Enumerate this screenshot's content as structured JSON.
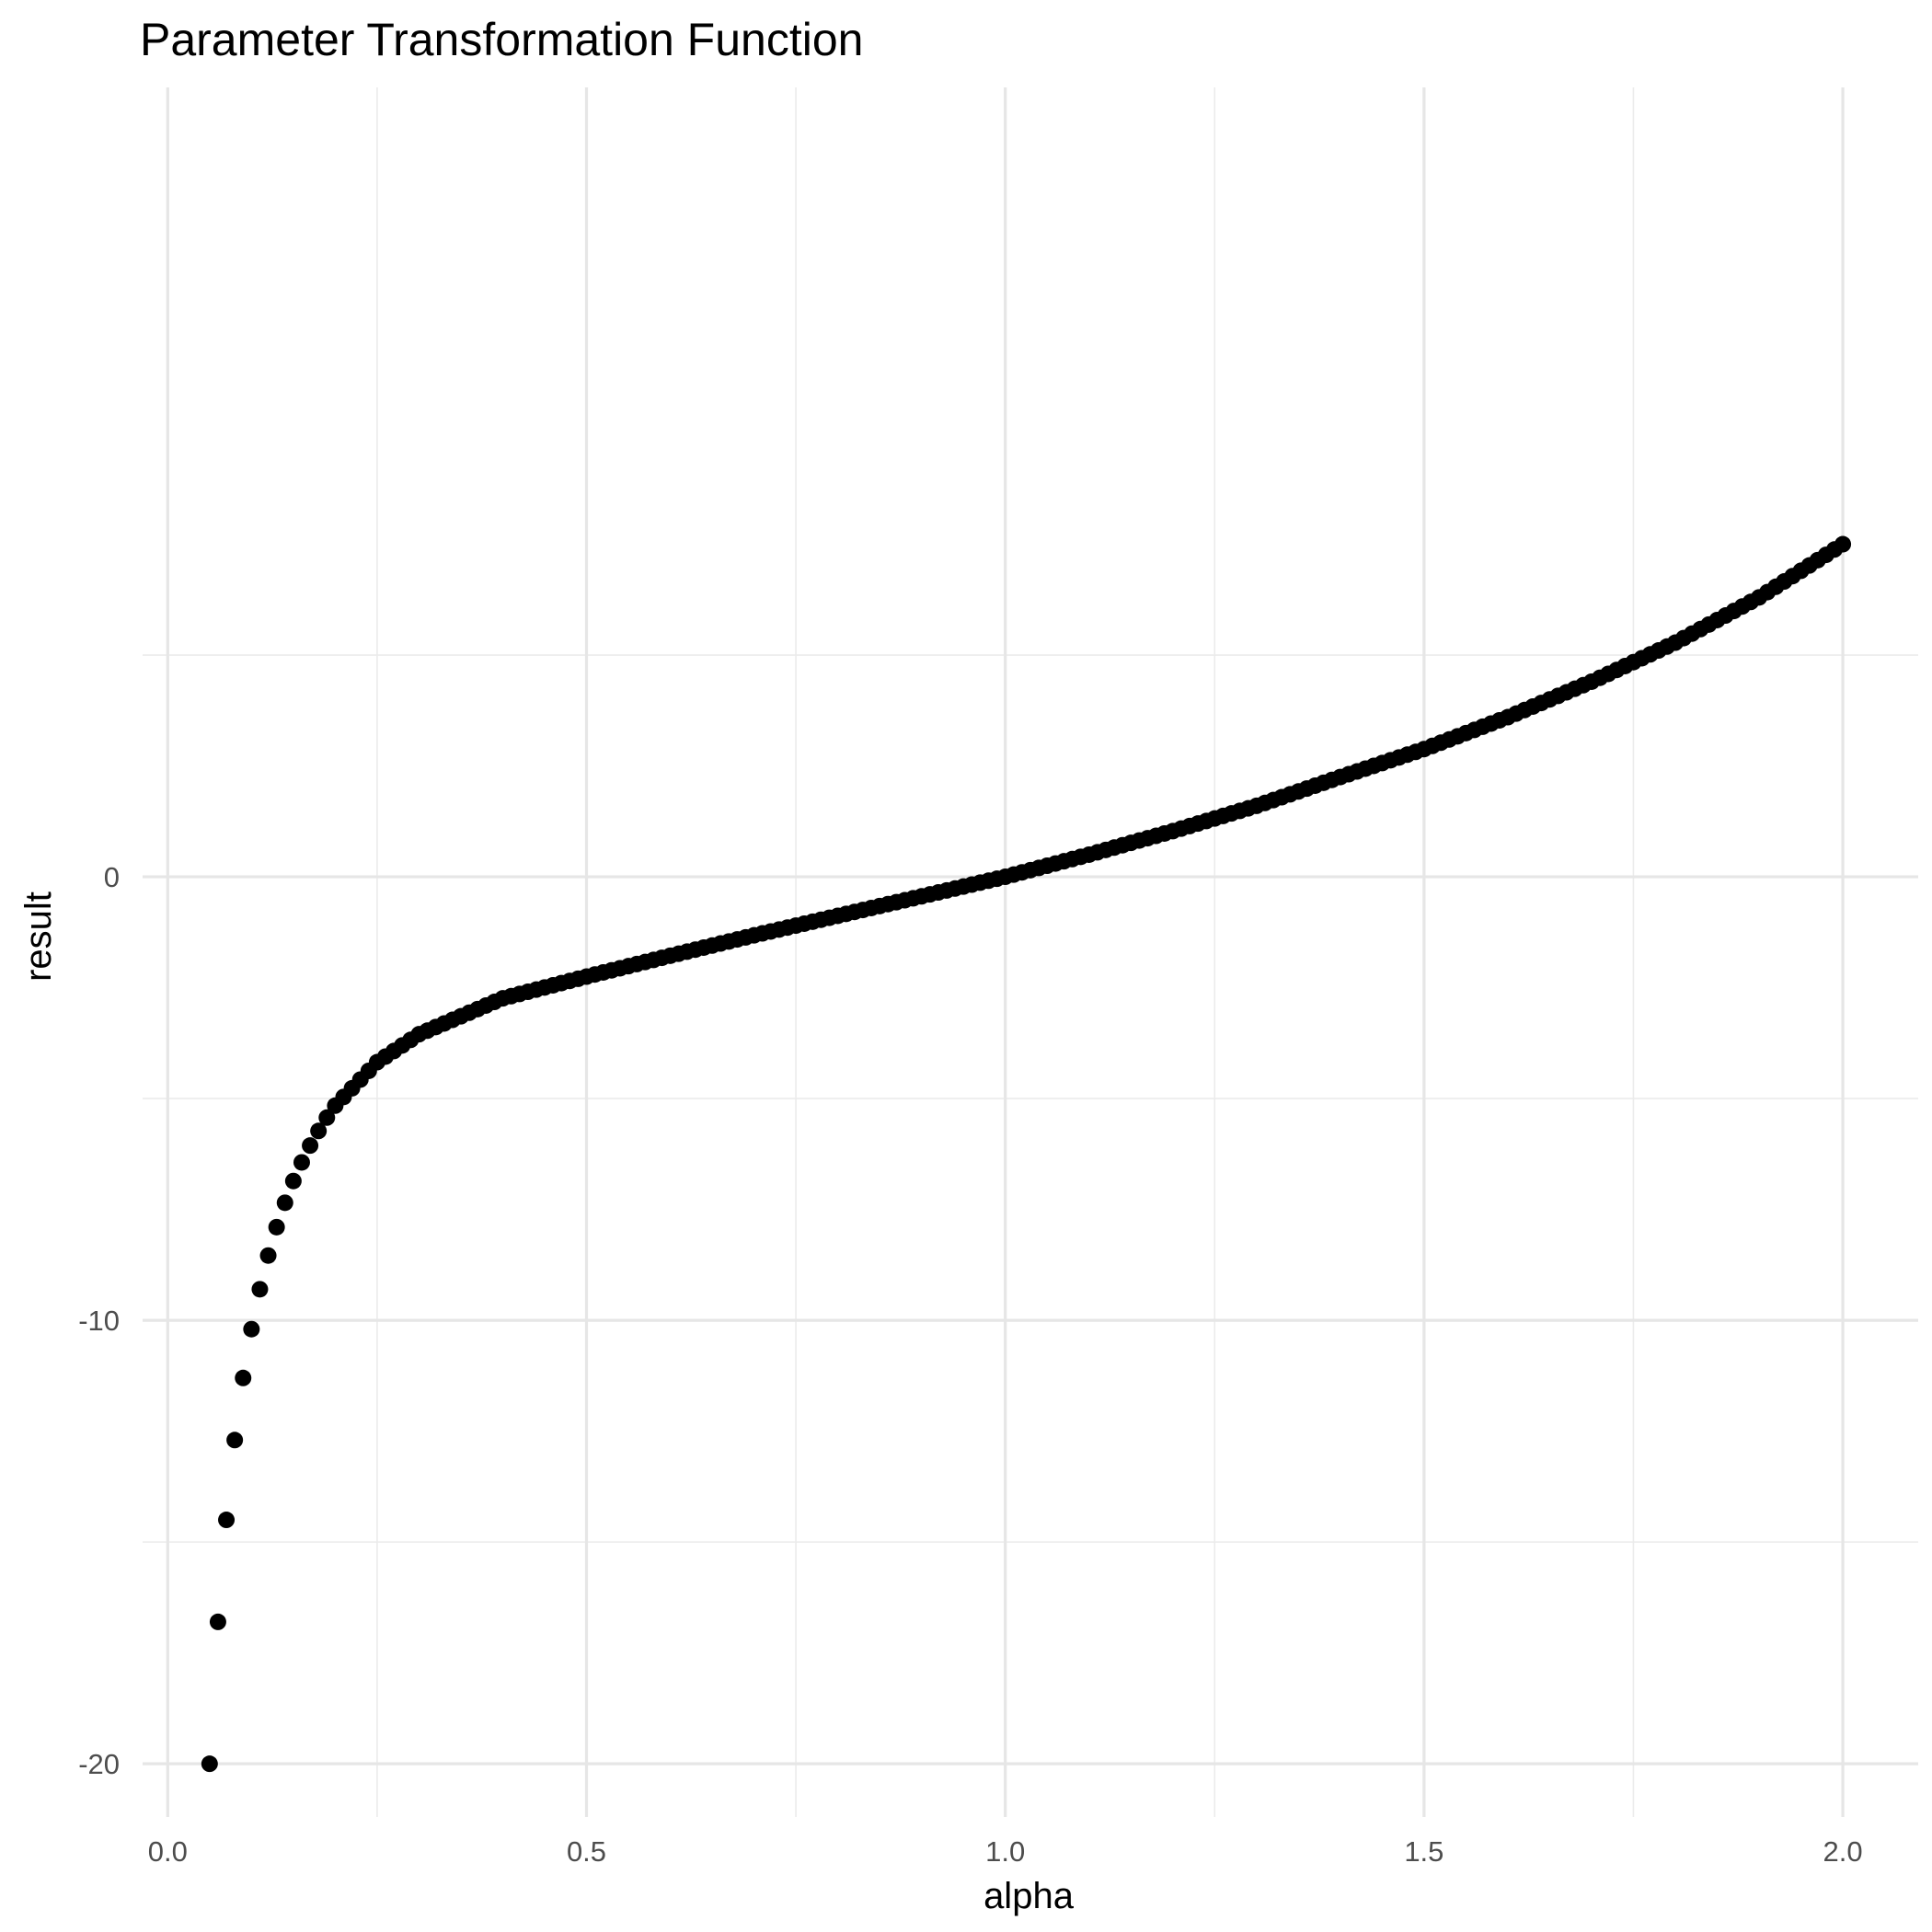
{
  "chart_data": {
    "type": "scatter",
    "title": "Parameter Transformation Function",
    "xlabel": "alpha",
    "ylabel": "result",
    "xlim": [
      -0.03,
      2.09
    ],
    "ylim": [
      -21.2,
      17.8
    ],
    "x_ticks": [
      0.0,
      0.5,
      1.0,
      1.5,
      2.0
    ],
    "x_tick_labels": [
      "0.0",
      "0.5",
      "1.0",
      "1.5",
      "2.0"
    ],
    "y_ticks": [
      -20,
      -10,
      0
    ],
    "y_tick_labels": [
      "-20",
      "-10",
      "0"
    ],
    "x_minor_ticks": [
      0.25,
      0.75,
      1.25,
      1.75
    ],
    "y_minor_ticks": [
      -15,
      -5,
      5
    ],
    "grid": true,
    "legend": "none",
    "point_color": "#000000",
    "series": [
      {
        "x_start": 0.05,
        "x_end": 2.0,
        "x_step": 0.01,
        "points": [
          [
            0.05,
            -20.0
          ],
          [
            0.06,
            -16.8
          ],
          [
            0.07,
            -14.5
          ],
          [
            0.08,
            -12.7
          ],
          [
            0.09,
            -11.3
          ],
          [
            0.1,
            -10.2
          ],
          [
            0.11,
            -9.3
          ],
          [
            0.12,
            -8.54
          ],
          [
            0.13,
            -7.9
          ],
          [
            0.14,
            -7.35
          ],
          [
            0.15,
            -6.86
          ],
          [
            0.16,
            -6.44
          ],
          [
            0.17,
            -6.06
          ],
          [
            0.18,
            -5.73
          ],
          [
            0.19,
            -5.43
          ],
          [
            0.2,
            -5.16
          ],
          [
            0.25,
            -4.18
          ],
          [
            0.3,
            -3.55
          ],
          [
            0.4,
            -2.74
          ],
          [
            0.5,
            -2.25
          ],
          [
            0.6,
            -1.78
          ],
          [
            0.7,
            -1.32
          ],
          [
            0.8,
            -0.88
          ],
          [
            0.9,
            -0.44
          ],
          [
            1.0,
            0.0
          ],
          [
            1.1,
            0.5
          ],
          [
            1.2,
            1.03
          ],
          [
            1.3,
            1.6
          ],
          [
            1.4,
            2.25
          ],
          [
            1.5,
            2.88
          ],
          [
            1.6,
            3.6
          ],
          [
            1.7,
            4.4
          ],
          [
            1.8,
            5.28
          ],
          [
            1.9,
            6.3
          ],
          [
            2.0,
            7.5
          ]
        ]
      }
    ]
  }
}
